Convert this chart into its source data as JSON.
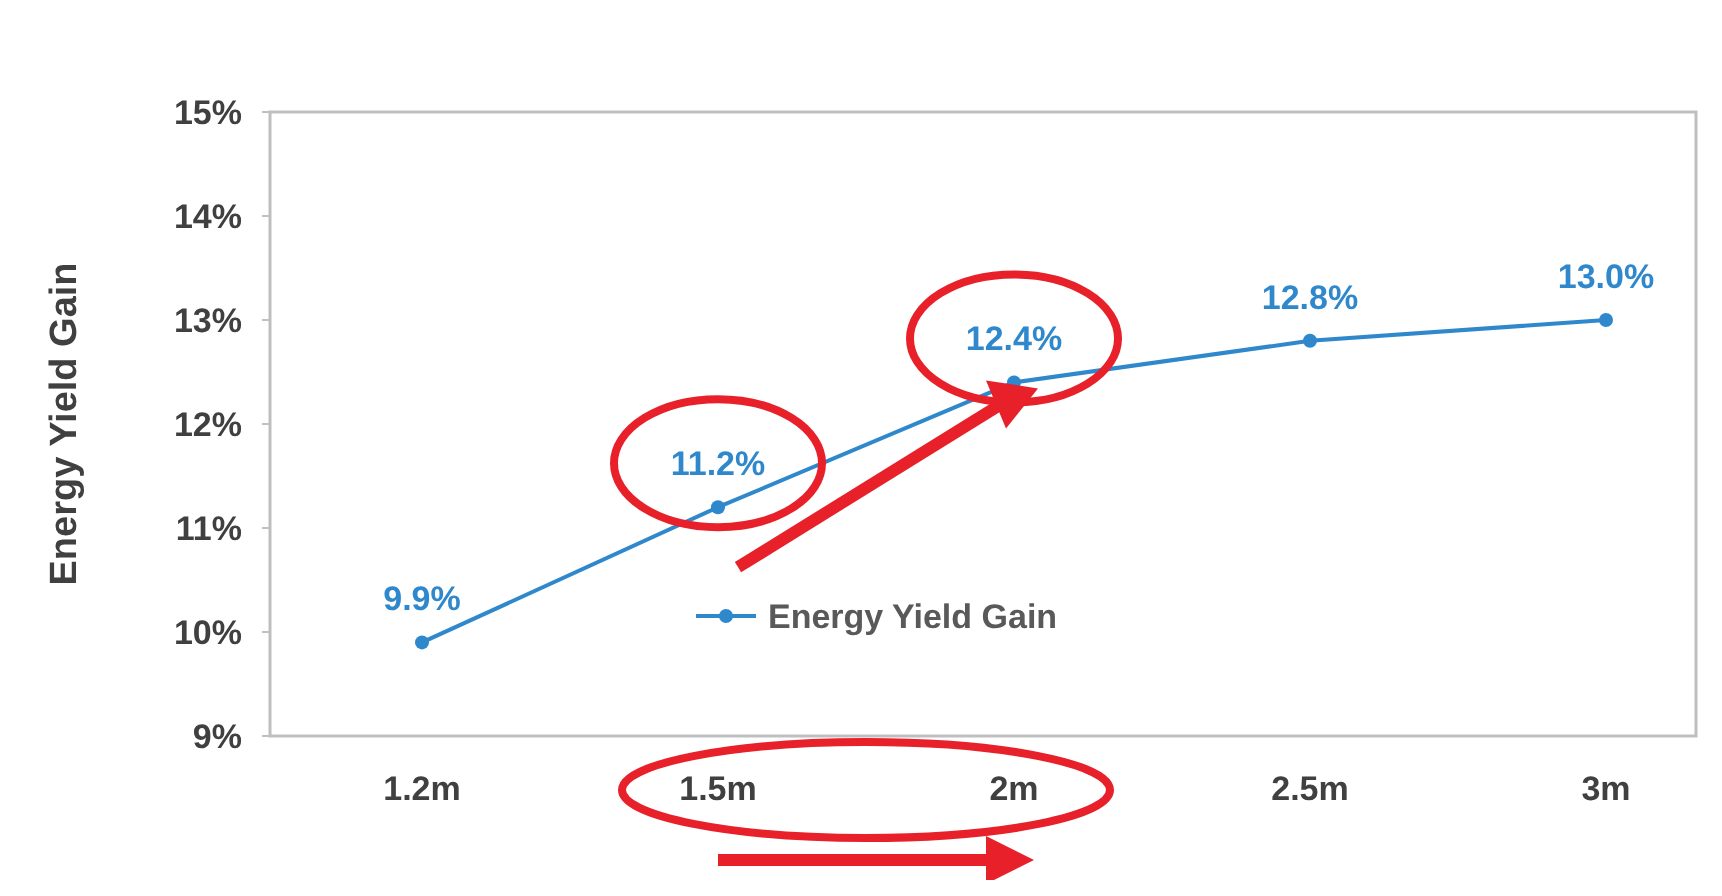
{
  "chart_data": {
    "type": "line",
    "ylabel": "Energy Yield Gain",
    "categories": [
      "1.2m",
      "1.5m",
      "2m",
      "2.5m",
      "3m"
    ],
    "series": [
      {
        "name": "Energy Yield Gain",
        "color": "#2f88cc",
        "values": [
          9.9,
          11.2,
          12.4,
          12.8,
          13.0
        ],
        "value_labels": [
          "9.9%",
          "11.2%",
          "12.4%",
          "12.8%",
          "13.0%"
        ]
      }
    ],
    "ylim": [
      9,
      15
    ],
    "yticks": [
      {
        "value": 9,
        "label": "9%"
      },
      {
        "value": 10,
        "label": "10%"
      },
      {
        "value": 11,
        "label": "11%"
      },
      {
        "value": 12,
        "label": "12%"
      },
      {
        "value": 13,
        "label": "13%"
      },
      {
        "value": 14,
        "label": "14%"
      },
      {
        "value": 15,
        "label": "15%"
      }
    ],
    "grid": false,
    "legend": "bottom",
    "marker": "circle",
    "line_style": "solid"
  }
}
